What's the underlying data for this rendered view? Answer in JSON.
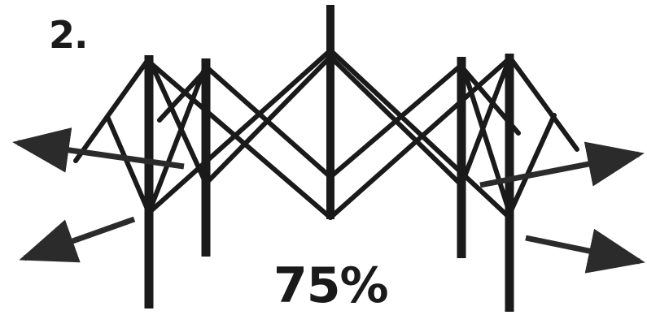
{
  "step": {
    "label": "2."
  },
  "frame": {
    "opening_label": "75%",
    "stroke_color": "#1a1a1a",
    "arrow_color": "#2b2b2b"
  }
}
